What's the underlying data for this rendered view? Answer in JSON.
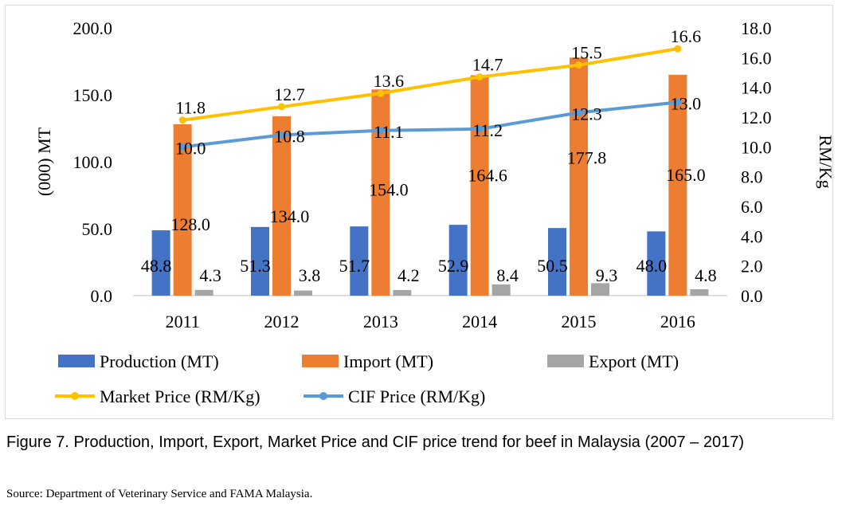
{
  "caption": "Figure 7. Production, Import, Export, Market Price and CIF price trend for beef in Malaysia (2007 – 2017)",
  "source": "Source: Department of Veterinary Service and FAMA Malaysia.",
  "chart_data": {
    "type": "bar",
    "categories": [
      "2011",
      "2012",
      "2013",
      "2014",
      "2015",
      "2016"
    ],
    "ylabel": "(000) MT",
    "y2label": "RM/Kg",
    "ylim": [
      0,
      200
    ],
    "y2lim": [
      0,
      18
    ],
    "y_ticks": [
      "0.0",
      "50.0",
      "100.0",
      "150.0",
      "200.0"
    ],
    "y2_ticks": [
      "0.0",
      "2.0",
      "4.0",
      "6.0",
      "8.0",
      "10.0",
      "12.0",
      "14.0",
      "16.0",
      "18.0"
    ],
    "legend_position": "bottom",
    "grid": false,
    "series": [
      {
        "name": "Production (MT)",
        "kind": "bar",
        "axis": "left",
        "color": "#4472c4",
        "values": [
          48.8,
          51.3,
          51.7,
          52.9,
          50.5,
          48.0
        ],
        "labels": [
          "48.8",
          "51.3",
          "51.7",
          "52.9",
          "50.5",
          "48.0"
        ]
      },
      {
        "name": "Import (MT)",
        "kind": "bar",
        "axis": "left",
        "color": "#ed7d31",
        "values": [
          128.0,
          134.0,
          154.0,
          164.6,
          177.8,
          165.0
        ],
        "labels": [
          "128.0",
          "134.0",
          "154.0",
          "164.6",
          "177.8",
          "165.0"
        ]
      },
      {
        "name": "Export (MT)",
        "kind": "bar",
        "axis": "left",
        "color": "#a5a5a5",
        "values": [
          4.3,
          3.8,
          4.2,
          8.4,
          9.3,
          4.8
        ],
        "labels": [
          "4.3",
          "3.8",
          "4.2",
          "8.4",
          "9.3",
          "4.8"
        ]
      },
      {
        "name": "Market Price (RM/Kg)",
        "kind": "line",
        "axis": "right",
        "color": "#ffc000",
        "values": [
          11.8,
          12.7,
          13.6,
          14.7,
          15.5,
          16.6
        ],
        "labels": [
          "11.8",
          "12.7",
          "13.6",
          "14.7",
          "15.5",
          "16.6"
        ]
      },
      {
        "name": "CIF Price (RM/Kg)",
        "kind": "line",
        "axis": "right",
        "color": "#5b9bd5",
        "values": [
          10.0,
          10.8,
          11.1,
          11.2,
          12.3,
          13.0
        ],
        "labels": [
          "10.0",
          "10.8",
          "11.1",
          "11.2",
          "12.3",
          "13.0"
        ]
      }
    ]
  }
}
